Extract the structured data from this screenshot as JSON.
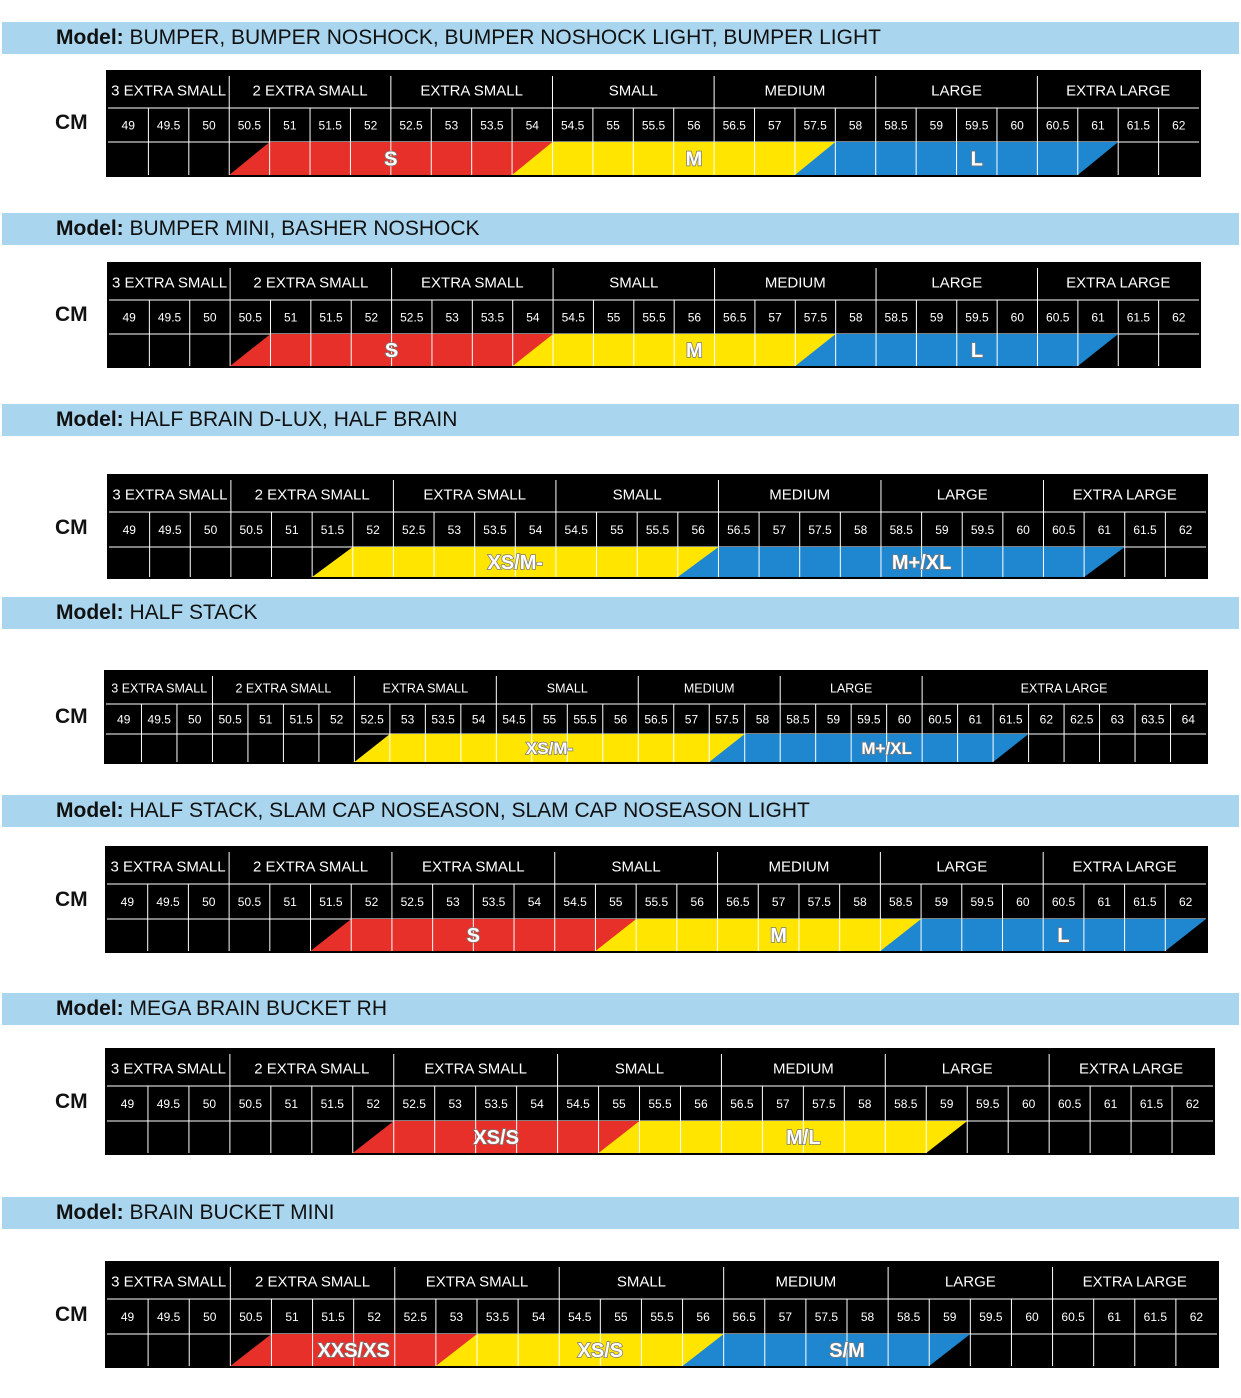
{
  "model_label": "Model:",
  "unit": "CM",
  "charts": [
    {
      "models": "BUMPER, BUMPER NOSHOCK, BUMPER NOSHOCK LIGHT, BUMPER LIGHT",
      "headers": [
        "3 EXTRA SMALL",
        "2 EXTRA SMALL",
        "EXTRA SMALL",
        "SMALL",
        "MEDIUM",
        "LARGE",
        "EXTRA LARGE"
      ],
      "header_spans": [
        3,
        4,
        4,
        4,
        4,
        4,
        4
      ],
      "values": [
        "49",
        "49.5",
        "50",
        "50.5",
        "51",
        "51.5",
        "52",
        "52.5",
        "53",
        "53.5",
        "54",
        "54.5",
        "55",
        "55.5",
        "56",
        "56.5",
        "57",
        "57.5",
        "58",
        "58.5",
        "59",
        "59.5",
        "60",
        "60.5",
        "61",
        "61.5",
        "62"
      ],
      "bands": [
        {
          "label": "S",
          "color": "#e8302a",
          "from": 3,
          "to": 11
        },
        {
          "label": "M",
          "color": "#ffe500",
          "from": 11,
          "to": 18
        },
        {
          "label": "L",
          "color": "#1f86d0",
          "from": 18,
          "to": 25
        }
      ]
    },
    {
      "models": "BUMPER MINI, BASHER NOSHOCK",
      "headers": [
        "3 EXTRA SMALL",
        "2 EXTRA SMALL",
        "EXTRA SMALL",
        "SMALL",
        "MEDIUM",
        "LARGE",
        "EXTRA LARGE"
      ],
      "header_spans": [
        3,
        4,
        4,
        4,
        4,
        4,
        4
      ],
      "values": [
        "49",
        "49.5",
        "50",
        "50.5",
        "51",
        "51.5",
        "52",
        "52.5",
        "53",
        "53.5",
        "54",
        "54.5",
        "55",
        "55.5",
        "56",
        "56.5",
        "57",
        "57.5",
        "58",
        "58.5",
        "59",
        "59.5",
        "60",
        "60.5",
        "61",
        "61.5",
        "62"
      ],
      "bands": [
        {
          "label": "S",
          "color": "#e8302a",
          "from": 3,
          "to": 11
        },
        {
          "label": "M",
          "color": "#ffe500",
          "from": 11,
          "to": 18
        },
        {
          "label": "L",
          "color": "#1f86d0",
          "from": 18,
          "to": 25
        }
      ]
    },
    {
      "models": "HALF BRAIN D-LUX, HALF BRAIN",
      "headers": [
        "3 EXTRA SMALL",
        "2 EXTRA SMALL",
        "EXTRA SMALL",
        "SMALL",
        "MEDIUM",
        "LARGE",
        "EXTRA LARGE"
      ],
      "header_spans": [
        3,
        4,
        4,
        4,
        4,
        4,
        4
      ],
      "values": [
        "49",
        "49.5",
        "50",
        "50.5",
        "51",
        "51.5",
        "52",
        "52.5",
        "53",
        "53.5",
        "54",
        "54.5",
        "55",
        "55.5",
        "56",
        "56.5",
        "57",
        "57.5",
        "58",
        "58.5",
        "59",
        "59.5",
        "60",
        "60.5",
        "61",
        "61.5",
        "62"
      ],
      "bands": [
        {
          "label": "XS/M-",
          "color": "#ffe500",
          "from": 5,
          "to": 15
        },
        {
          "label": "M+/XL",
          "color": "#1f86d0",
          "from": 15,
          "to": 25
        }
      ]
    },
    {
      "models": "HALF STACK",
      "headers": [
        "3 EXTRA SMALL",
        "2 EXTRA SMALL",
        "EXTRA SMALL",
        "SMALL",
        "MEDIUM",
        "LARGE",
        "EXTRA LARGE"
      ],
      "header_spans": [
        3,
        4,
        4,
        4,
        4,
        4,
        8
      ],
      "values": [
        "49",
        "49.5",
        "50",
        "50.5",
        "51",
        "51.5",
        "52",
        "52.5",
        "53",
        "53.5",
        "54",
        "54.5",
        "55",
        "55.5",
        "56",
        "56.5",
        "57",
        "57.5",
        "58",
        "58.5",
        "59",
        "59.5",
        "60",
        "60.5",
        "61",
        "61.5",
        "62",
        "62.5",
        "63",
        "63.5",
        "64"
      ],
      "bands": [
        {
          "label": "XS/M-",
          "color": "#ffe500",
          "from": 7,
          "to": 18
        },
        {
          "label": "M+/XL",
          "color": "#1f86d0",
          "from": 18,
          "to": 26
        }
      ]
    },
    {
      "models": "HALF STACK, SLAM CAP NOSEASON, SLAM CAP NOSEASON LIGHT",
      "headers": [
        "3 EXTRA SMALL",
        "2 EXTRA SMALL",
        "EXTRA SMALL",
        "SMALL",
        "MEDIUM",
        "LARGE",
        "EXTRA LARGE"
      ],
      "header_spans": [
        3,
        4,
        4,
        4,
        4,
        4,
        4
      ],
      "values": [
        "49",
        "49.5",
        "50",
        "50.5",
        "51",
        "51.5",
        "52",
        "52.5",
        "53",
        "53.5",
        "54",
        "54.5",
        "55",
        "55.5",
        "56",
        "56.5",
        "57",
        "57.5",
        "58",
        "58.5",
        "59",
        "59.5",
        "60",
        "60.5",
        "61",
        "61.5",
        "62"
      ],
      "bands": [
        {
          "label": "S",
          "color": "#e8302a",
          "from": 5,
          "to": 13
        },
        {
          "label": "M",
          "color": "#ffe500",
          "from": 13,
          "to": 20
        },
        {
          "label": "L",
          "color": "#1f86d0",
          "from": 20,
          "to": 27
        }
      ]
    },
    {
      "models": "MEGA BRAIN BUCKET RH",
      "headers": [
        "3 EXTRA SMALL",
        "2 EXTRA SMALL",
        "EXTRA SMALL",
        "SMALL",
        "MEDIUM",
        "LARGE",
        "EXTRA LARGE"
      ],
      "header_spans": [
        3,
        4,
        4,
        4,
        4,
        4,
        4
      ],
      "values": [
        "49",
        "49.5",
        "50",
        "50.5",
        "51",
        "51.5",
        "52",
        "52.5",
        "53",
        "53.5",
        "54",
        "54.5",
        "55",
        "55.5",
        "56",
        "56.5",
        "57",
        "57.5",
        "58",
        "58.5",
        "59",
        "59.5",
        "60",
        "60.5",
        "61",
        "61.5",
        "62"
      ],
      "bands": [
        {
          "label": "XS/S",
          "color": "#e8302a",
          "from": 6,
          "to": 13
        },
        {
          "label": "M/L",
          "color": "#ffe500",
          "from": 13,
          "to": 21
        }
      ]
    },
    {
      "models": "BRAIN BUCKET MINI",
      "headers": [
        "3 EXTRA SMALL",
        "2 EXTRA SMALL",
        "EXTRA SMALL",
        "SMALL",
        "MEDIUM",
        "LARGE",
        "EXTRA LARGE"
      ],
      "header_spans": [
        3,
        4,
        4,
        4,
        4,
        4,
        4
      ],
      "values": [
        "49",
        "49.5",
        "50",
        "50.5",
        "51",
        "51.5",
        "52",
        "52.5",
        "53",
        "53.5",
        "54",
        "54.5",
        "55",
        "55.5",
        "56",
        "56.5",
        "57",
        "57.5",
        "58",
        "58.5",
        "59",
        "59.5",
        "60",
        "60.5",
        "61",
        "61.5",
        "62"
      ],
      "bands": [
        {
          "label": "XXS/XS",
          "color": "#e8302a",
          "from": 3,
          "to": 9
        },
        {
          "label": "XS/S",
          "color": "#ffe500",
          "from": 9,
          "to": 15
        },
        {
          "label": "S/M",
          "color": "#1f86d0",
          "from": 15,
          "to": 21
        }
      ]
    }
  ]
}
